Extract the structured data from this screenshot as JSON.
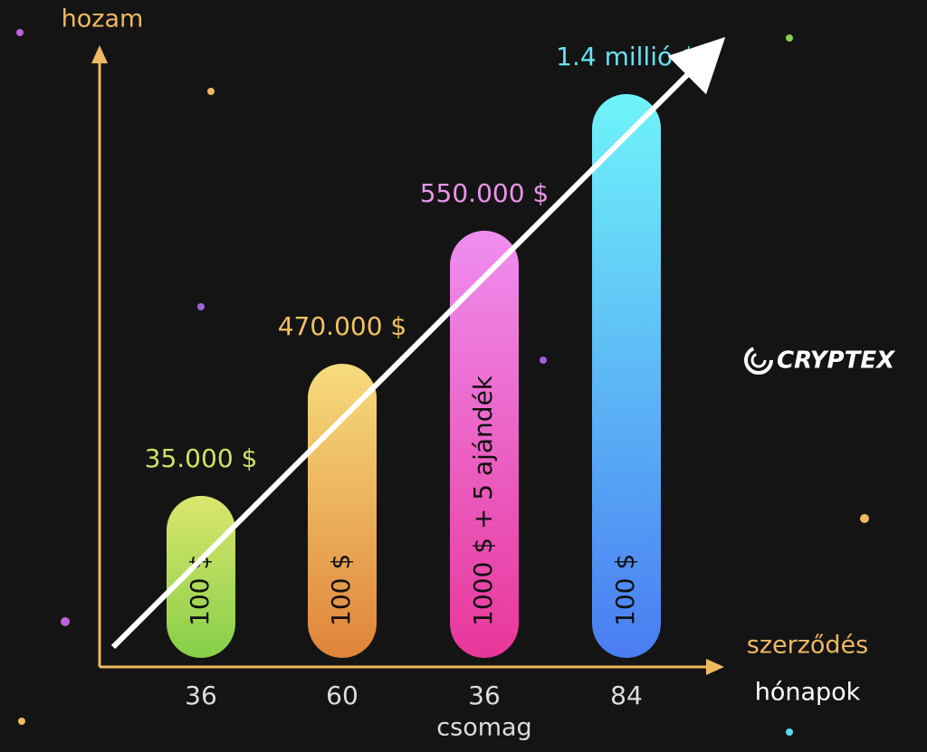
{
  "axis": {
    "y_label": "hozam",
    "x_label": "szerződés",
    "x_unit": "hónapok",
    "x_caption": "csomag"
  },
  "bars": [
    {
      "label": "35.000 $",
      "inner": "100 $",
      "months": "36"
    },
    {
      "label": "470.000 $",
      "inner": "100 $",
      "months": "60"
    },
    {
      "label": "550.000 $",
      "inner": "1000 $ + 5 ajándék",
      "months": "36"
    },
    {
      "label": "1.4 millió $",
      "inner": "100 $",
      "months": "84"
    }
  ],
  "brand": "CRYPTEX"
}
